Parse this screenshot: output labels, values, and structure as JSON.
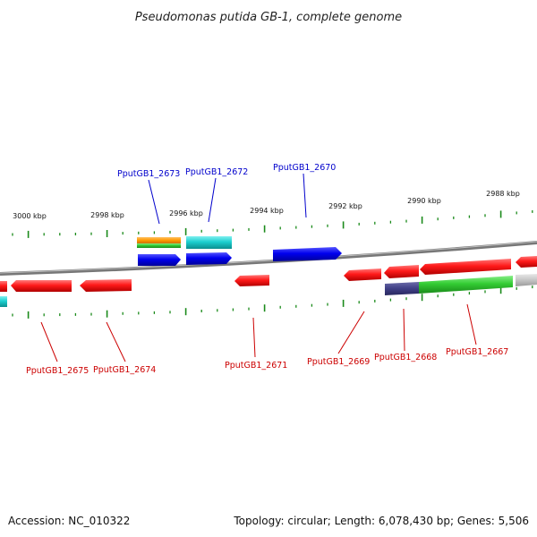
{
  "title": "Pseudomonas putida GB-1, complete genome",
  "footer": {
    "accession": "Accession: NC_010322",
    "info": "Topology: circular; Length: 6,078,430 bp; Genes: 5,506"
  },
  "scale_labels": [
    "3000 kbp",
    "2998 kbp",
    "2996 kbp",
    "2994 kbp",
    "2992 kbp",
    "2990 kbp",
    "2988 kbp"
  ],
  "colors": {
    "forward_label": "#0000cc",
    "reverse_label": "#cc0000",
    "tick": "#1a8a1a",
    "backbone": "#7a7a7a"
  },
  "forward_genes": [
    {
      "label": "PputGB1_2673"
    },
    {
      "label": "PputGB1_2672"
    },
    {
      "label": "PputGB1_2670"
    }
  ],
  "reverse_genes": [
    {
      "label": "PputGB1_2675"
    },
    {
      "label": "PputGB1_2674"
    },
    {
      "label": "PputGB1_2671"
    },
    {
      "label": "PputGB1_2669"
    },
    {
      "label": "PputGB1_2668"
    },
    {
      "label": "PputGB1_2667"
    }
  ]
}
